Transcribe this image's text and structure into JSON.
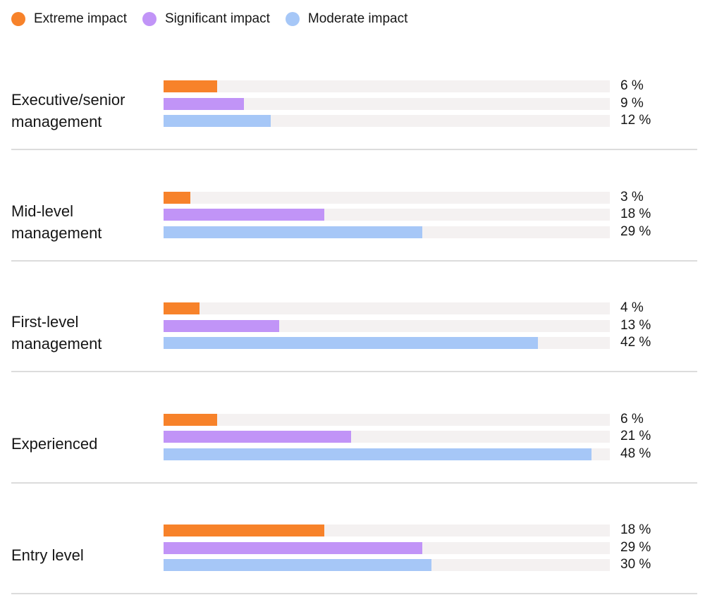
{
  "legend": [
    {
      "name": "Extreme impact",
      "color": "#f7822a"
    },
    {
      "name": "Significant impact",
      "color": "#c194f7"
    },
    {
      "name": "Moderate impact",
      "color": "#a6c7f7"
    }
  ],
  "chart_data": {
    "type": "bar",
    "orientation": "horizontal",
    "grouped": true,
    "unit": "%",
    "xlim": [
      0,
      50
    ],
    "legend_position": "top-left",
    "categories": [
      "Executive/senior management",
      "Mid-level management",
      "First-level management",
      "Experienced",
      "Entry level"
    ],
    "series": [
      {
        "name": "Extreme impact",
        "color": "#f7822a",
        "values": [
          6,
          3,
          4,
          6,
          18
        ]
      },
      {
        "name": "Significant impact",
        "color": "#c194f7",
        "values": [
          9,
          18,
          13,
          21,
          29
        ]
      },
      {
        "name": "Moderate impact",
        "color": "#a6c7f7",
        "values": [
          12,
          29,
          42,
          48,
          30
        ]
      }
    ],
    "value_labels": [
      [
        "6 %",
        "9 %",
        "12 %"
      ],
      [
        "3 %",
        "18 %",
        "29 %"
      ],
      [
        "4 %",
        "13 %",
        "42 %"
      ],
      [
        "6 %",
        "21 %",
        "48 %"
      ],
      [
        "18 %",
        "29 %",
        "30 %"
      ]
    ]
  }
}
